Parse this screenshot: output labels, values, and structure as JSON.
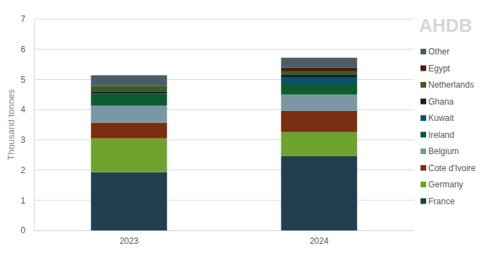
{
  "chart_data": {
    "type": "bar",
    "stacked": true,
    "y_label": "Thousand tonnes",
    "annotations": [
      "AHDB"
    ],
    "categories": [
      "2023",
      "2024"
    ],
    "ylim": [
      0,
      7
    ],
    "yticks": [
      0,
      1,
      2,
      3,
      4,
      5,
      6,
      7
    ],
    "grid": true,
    "legend": "right",
    "series": [
      {
        "name": "France",
        "color": "#213f4f",
        "values": [
          1.93,
          2.46
        ]
      },
      {
        "name": "Germany",
        "color": "#6fa32f",
        "values": [
          1.12,
          0.8
        ]
      },
      {
        "name": "Cote d'Ivoire",
        "color": "#7b2e10",
        "values": [
          0.52,
          0.7
        ]
      },
      {
        "name": "Belgium",
        "color": "#7a97a3",
        "values": [
          0.56,
          0.54
        ]
      },
      {
        "name": "Ireland",
        "color": "#0d5b32",
        "values": [
          0.4,
          0.37
        ]
      },
      {
        "name": "Kuwait",
        "color": "#0a5273",
        "values": [
          0,
          0.19
        ]
      },
      {
        "name": "Ghana",
        "color": "#16222a",
        "values": [
          0.06,
          0.09
        ]
      },
      {
        "name": "Netherlands",
        "color": "#3a5c27",
        "values": [
          0.2,
          0.12
        ]
      },
      {
        "name": "Egypt",
        "color": "#4a1f10",
        "values": [
          0,
          0.12
        ]
      },
      {
        "name": "Other",
        "color": "#4a5d68",
        "values": [
          0.35,
          0.33
        ]
      }
    ]
  }
}
